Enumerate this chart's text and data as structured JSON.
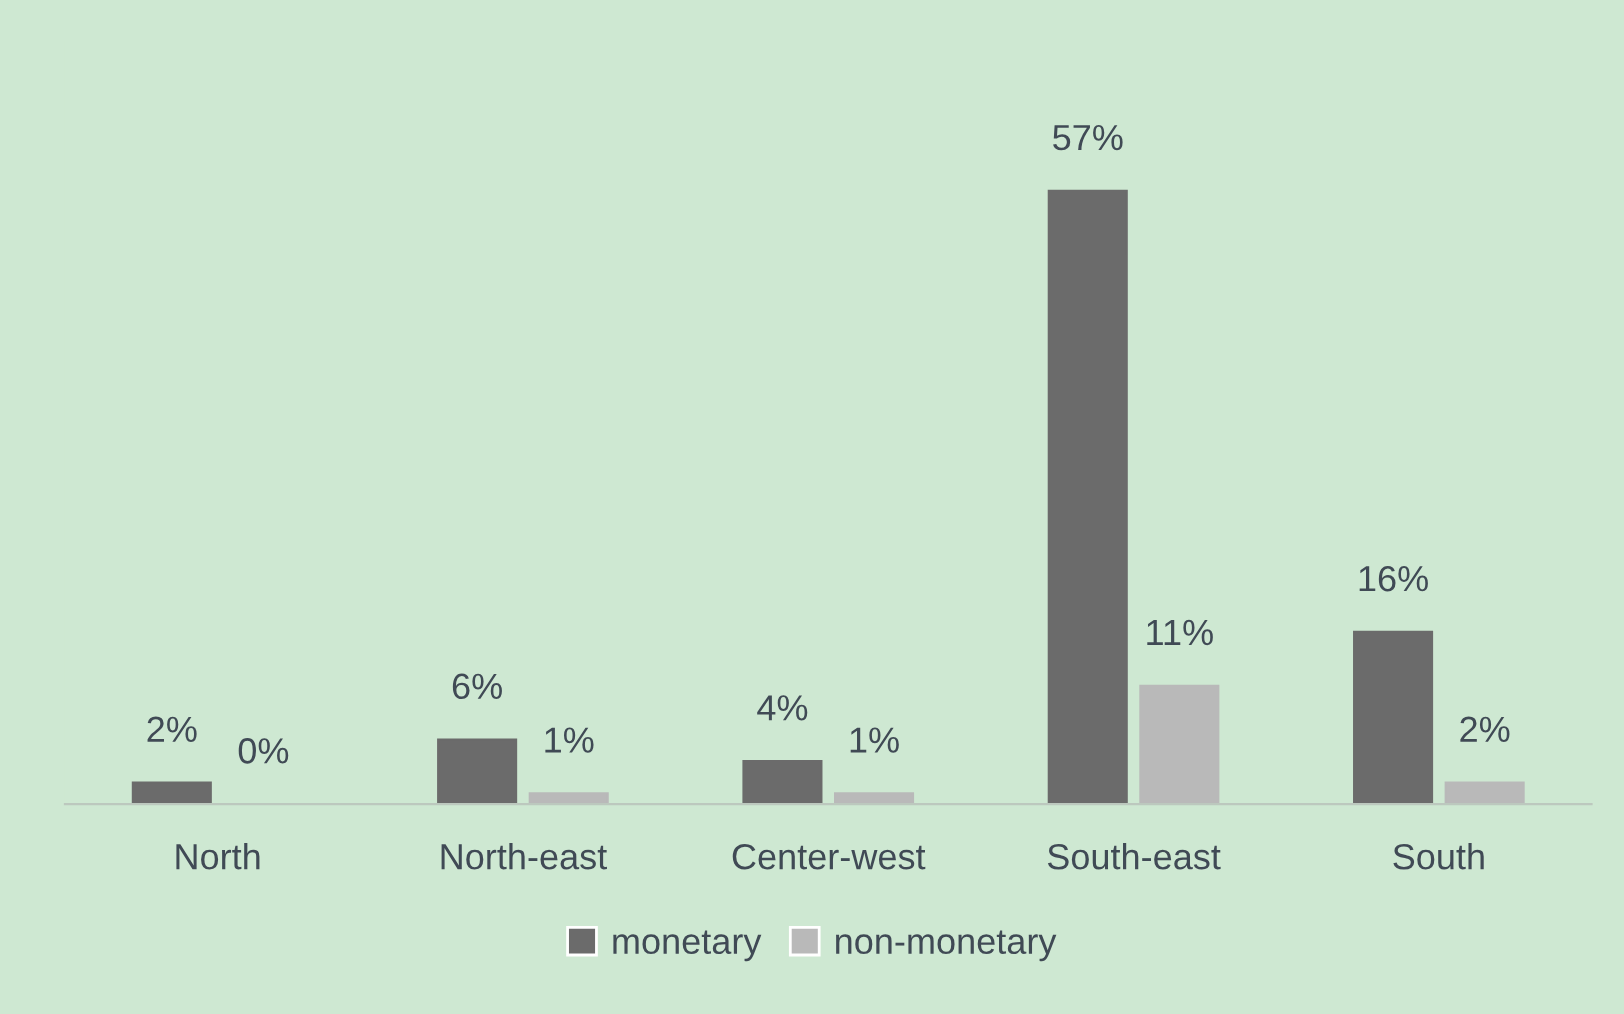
{
  "chart_data": {
    "type": "bar",
    "categories": [
      "North",
      "North-east",
      "Center-west",
      "South-east",
      "South"
    ],
    "series": [
      {
        "name": "monetary",
        "color": "#6b6b6b",
        "values": [
          2,
          6,
          4,
          57,
          16
        ],
        "value_labels": [
          "2%",
          "6%",
          "4%",
          "57%",
          "16%"
        ]
      },
      {
        "name": "non-monetary",
        "color": "#b9b9b9",
        "values": [
          0,
          1,
          1,
          11,
          2
        ],
        "value_labels": [
          "0%",
          "1%",
          "1%",
          "11%",
          "2%"
        ]
      }
    ],
    "legend": "bottom",
    "grid": false
  }
}
